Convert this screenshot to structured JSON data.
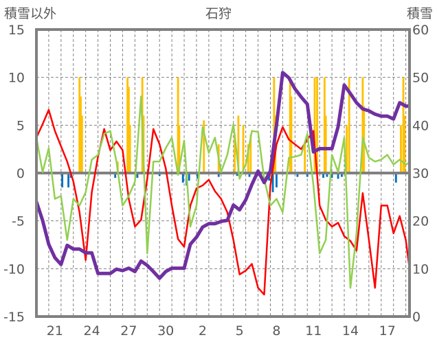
{
  "chart_data": {
    "type": "line",
    "title": "石狩",
    "left_axis_label": "積雪以外",
    "right_axis_label": "積雪",
    "left_ylim": [
      -15,
      15
    ],
    "left_yticks": [
      15,
      10,
      5,
      0,
      -5,
      -10,
      -15
    ],
    "right_ylim": [
      0,
      60
    ],
    "right_yticks": [
      60,
      50,
      40,
      30,
      20,
      10,
      0
    ],
    "xlim_days": [
      0,
      30.3
    ],
    "xtick_labels": [
      {
        "day": 1.5,
        "label": "21"
      },
      {
        "day": 4.5,
        "label": "24"
      },
      {
        "day": 7.5,
        "label": "27"
      },
      {
        "day": 10.5,
        "label": "30"
      },
      {
        "day": 13.5,
        "label": "2"
      },
      {
        "day": 16.5,
        "label": "5"
      },
      {
        "day": 19.5,
        "label": "8"
      },
      {
        "day": 22.5,
        "label": "11"
      },
      {
        "day": 25.5,
        "label": "14"
      },
      {
        "day": 28.5,
        "label": "17"
      }
    ],
    "grid": "dashed",
    "x_start": 0,
    "x_step": 0.5,
    "series": [
      {
        "name": "red",
        "axis": "left",
        "color": "#ff0000",
        "values": [
          3.7,
          5.1,
          6.6,
          4.4,
          2.8,
          1.2,
          -0.9,
          -4.1,
          -9.1,
          -2.0,
          1.7,
          4.6,
          2.4,
          3.3,
          2.4,
          -2.7,
          -5.6,
          -4.9,
          -0.6,
          4.6,
          3.0,
          0.5,
          -3.4,
          -6.9,
          -7.7,
          -3.4,
          -1.6,
          -1.3,
          -0.7,
          -1.9,
          -2.7,
          -4.1,
          -7.0,
          -10.6,
          -10.2,
          -9.5,
          -12.0,
          -12.7,
          -1.3,
          3.0,
          4.8,
          3.5,
          3.0,
          2.5,
          3.5,
          4.4,
          -3.4,
          -4.9,
          -5.6,
          -5.2,
          -6.6,
          -7.1,
          -8.1,
          -2.1,
          -7.0,
          -12.0,
          -3.4,
          -3.4,
          -6.3,
          -4.5,
          -7.0,
          -12.0
        ]
      },
      {
        "name": "green",
        "axis": "left",
        "color": "#92d050",
        "values": [
          3.7,
          0.1,
          2.6,
          -2.7,
          -2.4,
          -7.0,
          -2.7,
          -3.4,
          -2.0,
          1.4,
          1.9,
          4.1,
          4.4,
          1.2,
          -3.4,
          -2.4,
          -0.9,
          8.0,
          -8.4,
          1.2,
          1.2,
          2.6,
          3.7,
          -0.2,
          3.4,
          -5.6,
          -3.4,
          4.8,
          2.1,
          3.7,
          0.1,
          1.9,
          5.1,
          -0.6,
          0.9,
          4.4,
          4.3,
          -0.6,
          -3.4,
          -2.7,
          -4.1,
          1.6,
          1.7,
          1.9,
          4.1,
          -1.3,
          -8.4,
          -7.0,
          1.9,
          0.1,
          3.7,
          -12.0,
          -6.3,
          3.7,
          1.6,
          1.2,
          1.4,
          1.9,
          0.9,
          1.4,
          0.9,
          1.2
        ]
      },
      {
        "name": "snow-depth",
        "axis": "right",
        "color": "#7030a0",
        "values": [
          24,
          20.1,
          15.1,
          12.3,
          10.9,
          14.9,
          14.1,
          14.1,
          13.3,
          13.3,
          9,
          9,
          9,
          9.9,
          9.6,
          10.1,
          9.4,
          11.6,
          10.7,
          9.4,
          8,
          9.4,
          10.1,
          10.1,
          10.1,
          15.1,
          16.6,
          18.7,
          19.4,
          19.4,
          19.9,
          20.1,
          23.3,
          22.3,
          24.4,
          27.6,
          30.4,
          28,
          30.4,
          40.1,
          51,
          49.9,
          47.6,
          45.9,
          44.4,
          34.4,
          35.1,
          35.1,
          35.1,
          39.7,
          48.4,
          46.6,
          44.7,
          43.4,
          43,
          42.3,
          41.9,
          41.9,
          41.3,
          44.7,
          44,
          44
        ]
      }
    ],
    "bars_positive": {
      "color": "#ffc000",
      "days": [
        3.5,
        3.6,
        3.7,
        6.6,
        7.4,
        7.5,
        7.6,
        8.6,
        8.7,
        11.5,
        11.6,
        13.6,
        14.8,
        16.1,
        16.4,
        16.8,
        17.2,
        17.4,
        19.3,
        19.4,
        20.6,
        20.7,
        21.8,
        22.6,
        22.8,
        23.4,
        23.5,
        25.2,
        25.4,
        26.5,
        26.6,
        29.6,
        29.8,
        29.9
      ],
      "values": [
        10,
        8,
        6,
        1.2,
        10,
        9,
        5,
        10,
        6,
        10,
        5,
        5.5,
        3,
        4,
        6,
        5,
        3,
        4,
        10,
        6,
        10,
        8,
        3,
        10,
        10,
        10,
        6,
        5,
        10,
        10,
        7,
        5,
        10,
        6
      ]
    },
    "bars_negative": {
      "color": "#0070c0",
      "days": [
        2.1,
        2.6,
        2.8,
        6.4,
        8.2,
        10.0,
        11.9,
        12.2,
        12.4,
        13.1,
        14.8,
        16.3,
        17.3,
        18.9,
        19.2,
        19.5,
        21.2,
        22.0,
        23.3,
        23.6,
        24.0,
        24.5,
        24.8,
        29.2
      ],
      "values": [
        -1.5,
        -1.5,
        -0.5,
        -0.5,
        -0.5,
        -0.3,
        -1,
        -1.3,
        -0.8,
        -0.6,
        -0.4,
        -0.3,
        -0.4,
        -0.8,
        -2,
        -1.5,
        -0.4,
        -0.4,
        -0.5,
        -0.4,
        -0.5,
        -0.6,
        -0.4,
        -1
      ]
    }
  }
}
